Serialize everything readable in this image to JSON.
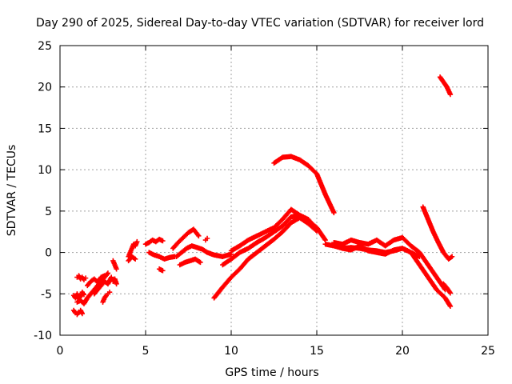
{
  "chart_data": {
    "type": "scatter",
    "title": "Day 290 of 2025, Sidereal Day-to-day VTEC variation (SDTVAR) for receiver lord",
    "xlabel": "GPS time / hours",
    "ylabel": "SDTVAR / TECUs",
    "xlim": [
      0,
      25
    ],
    "ylim": [
      -10,
      25
    ],
    "xticks": [
      0,
      5,
      10,
      15,
      20,
      25
    ],
    "yticks": [
      -10,
      -5,
      0,
      5,
      10,
      15,
      20,
      25
    ],
    "xtick_labels": [
      "0",
      "5",
      "10",
      "15",
      "20",
      "25"
    ],
    "ytick_labels": [
      "-10",
      "-5",
      "0",
      "5",
      "10",
      "15",
      "20",
      "25"
    ],
    "grid": true,
    "marker": "+",
    "color": "#ff0000",
    "series": [
      {
        "name": "s1",
        "x": [
          0.8,
          0.9,
          1.0,
          1.1,
          1.2,
          1.3
        ],
        "y": [
          -7.0,
          -7.3,
          -7.5,
          -7.2,
          -7.0,
          -7.4
        ]
      },
      {
        "name": "s2",
        "x": [
          0.8,
          0.9,
          1.0,
          1.1,
          1.2,
          1.3,
          1.4
        ],
        "y": [
          -5.2,
          -5.5,
          -5.0,
          -5.6,
          -5.3,
          -4.8,
          -5.1
        ]
      },
      {
        "name": "s3",
        "x": [
          1.0,
          1.2,
          1.4,
          1.6,
          1.8,
          2.0,
          2.2,
          2.4,
          2.6,
          2.8
        ],
        "y": [
          -6.0,
          -5.8,
          -6.2,
          -5.5,
          -5.0,
          -4.5,
          -4.0,
          -3.5,
          -3.0,
          -2.5
        ]
      },
      {
        "name": "s4",
        "x": [
          1.0,
          1.1,
          1.2,
          1.3,
          1.4,
          1.5
        ],
        "y": [
          -3.0,
          -2.8,
          -3.2,
          -3.0,
          -3.3,
          -3.1
        ]
      },
      {
        "name": "s5",
        "x": [
          1.6,
          1.8,
          2.0,
          2.2,
          2.4,
          2.6
        ],
        "y": [
          -4.0,
          -3.5,
          -3.2,
          -3.6,
          -3.0,
          -2.8
        ]
      },
      {
        "name": "s6",
        "x": [
          2.0,
          2.2,
          2.4,
          2.6,
          2.8,
          3.0
        ],
        "y": [
          -5.0,
          -4.5,
          -4.0,
          -3.5,
          -3.8,
          -3.0
        ]
      },
      {
        "name": "s7",
        "x": [
          2.5,
          2.6,
          2.7,
          2.8,
          2.9
        ],
        "y": [
          -6.0,
          -5.5,
          -5.2,
          -5.0,
          -4.8
        ]
      },
      {
        "name": "s8",
        "x": [
          3.1,
          3.2,
          3.3
        ],
        "y": [
          -1.0,
          -1.5,
          -2.0
        ]
      },
      {
        "name": "s9",
        "x": [
          3.1,
          3.2,
          3.3
        ],
        "y": [
          -3.5,
          -3.2,
          -3.8
        ]
      },
      {
        "name": "s10",
        "x": [
          4.0,
          4.1,
          4.2,
          4.3,
          4.4,
          4.5
        ],
        "y": [
          -0.5,
          0.0,
          0.5,
          1.0,
          0.8,
          1.3
        ]
      },
      {
        "name": "s11",
        "x": [
          4.0,
          4.2,
          4.4
        ],
        "y": [
          -1.0,
          -0.5,
          -0.8
        ]
      },
      {
        "name": "s12",
        "x": [
          5.0,
          5.2,
          5.4,
          5.6,
          5.8,
          6.0
        ],
        "y": [
          1.0,
          1.2,
          1.5,
          1.3,
          1.6,
          1.4
        ]
      },
      {
        "name": "s13",
        "x": [
          5.2,
          5.5,
          5.8,
          6.1,
          6.4,
          6.7
        ],
        "y": [
          0.0,
          -0.3,
          -0.5,
          -0.8,
          -0.6,
          -0.5
        ]
      },
      {
        "name": "s14",
        "x": [
          5.8,
          6.0
        ],
        "y": [
          -2.0,
          -2.2
        ]
      },
      {
        "name": "s15",
        "x": [
          6.6,
          6.9,
          7.2,
          7.5,
          7.8,
          8.1
        ],
        "y": [
          0.5,
          1.2,
          1.8,
          2.4,
          2.8,
          2.0
        ]
      },
      {
        "name": "s16",
        "x": [
          6.8,
          7.1,
          7.4,
          7.7,
          8.0,
          8.3,
          8.6,
          9.0,
          9.5,
          10.0
        ],
        "y": [
          -0.5,
          0.0,
          0.5,
          0.8,
          0.6,
          0.4,
          0.0,
          -0.3,
          -0.5,
          -0.2
        ]
      },
      {
        "name": "s17",
        "x": [
          7.0,
          7.3,
          7.6,
          7.9,
          8.2
        ],
        "y": [
          -1.5,
          -1.2,
          -1.0,
          -0.8,
          -1.2
        ]
      },
      {
        "name": "s18",
        "x": [
          8.5,
          8.6
        ],
        "y": [
          1.5,
          1.7
        ]
      },
      {
        "name": "s19",
        "x": [
          9.0,
          9.5,
          10.0,
          10.5,
          11.0,
          11.5,
          12.0,
          12.5,
          13.0,
          13.5,
          14.0,
          14.5,
          15.0
        ],
        "y": [
          -5.5,
          -4.2,
          -3.0,
          -2.0,
          -0.8,
          0.0,
          0.8,
          1.6,
          2.5,
          3.6,
          4.2,
          3.5,
          2.6
        ]
      },
      {
        "name": "s20",
        "x": [
          9.5,
          10.0,
          10.5,
          11.0,
          11.5,
          12.0,
          12.5,
          13.0,
          13.5,
          14.0,
          14.5,
          15.0
        ],
        "y": [
          -1.5,
          -0.8,
          0.0,
          0.5,
          1.2,
          1.8,
          2.5,
          3.2,
          4.3,
          4.5,
          4.0,
          2.8
        ]
      },
      {
        "name": "s21",
        "x": [
          10.0,
          10.5,
          11.0,
          11.5,
          12.0,
          12.5,
          13.0,
          13.5,
          14.0,
          14.5,
          15.0,
          15.5
        ],
        "y": [
          0.2,
          0.8,
          1.5,
          2.0,
          2.5,
          3.0,
          4.0,
          5.2,
          4.5,
          3.8,
          3.0,
          1.5
        ]
      },
      {
        "name": "s22",
        "x": [
          12.5,
          13.0,
          13.5,
          14.0,
          14.5,
          15.0,
          15.5,
          16.0
        ],
        "y": [
          10.8,
          11.5,
          11.6,
          11.2,
          10.5,
          9.5,
          7.0,
          4.8
        ]
      },
      {
        "name": "s23",
        "x": [
          15.5,
          16.0,
          16.5,
          17.0,
          17.5,
          18.0,
          18.5,
          19.0,
          19.5,
          20.0,
          20.5,
          21.0
        ],
        "y": [
          1.0,
          0.8,
          0.5,
          0.6,
          0.5,
          0.3,
          0.2,
          0.0,
          0.2,
          0.5,
          0.0,
          -0.5
        ]
      },
      {
        "name": "s24",
        "x": [
          16.0,
          16.5,
          17.0,
          17.5,
          18.0,
          18.5,
          19.0,
          19.5,
          20.0,
          20.5,
          21.0,
          21.5,
          22.0,
          22.5
        ],
        "y": [
          1.2,
          1.0,
          1.5,
          1.2,
          1.0,
          1.5,
          0.8,
          1.5,
          1.8,
          0.8,
          0.0,
          -1.5,
          -3.0,
          -4.5
        ]
      },
      {
        "name": "s25",
        "x": [
          16.5,
          17.0,
          17.5,
          18.0,
          18.5,
          19.0,
          19.5,
          20.0,
          20.5,
          21.0,
          21.5,
          22.0,
          22.5,
          22.8
        ],
        "y": [
          0.5,
          0.3,
          0.8,
          0.2,
          0.0,
          -0.2,
          0.3,
          0.5,
          0.0,
          -1.5,
          -3.0,
          -4.5,
          -5.5,
          -6.5
        ]
      },
      {
        "name": "s26",
        "x": [
          21.2,
          21.5,
          21.8,
          22.1,
          22.4,
          22.7,
          22.9
        ],
        "y": [
          5.5,
          4.0,
          2.5,
          1.2,
          0.0,
          -0.8,
          -0.5
        ]
      },
      {
        "name": "s27",
        "x": [
          22.2,
          22.4,
          22.6,
          22.8
        ],
        "y": [
          21.2,
          20.6,
          20.0,
          19.1
        ]
      },
      {
        "name": "s28",
        "x": [
          22.4,
          22.6,
          22.8
        ],
        "y": [
          -3.8,
          -4.3,
          -4.9
        ]
      }
    ]
  }
}
